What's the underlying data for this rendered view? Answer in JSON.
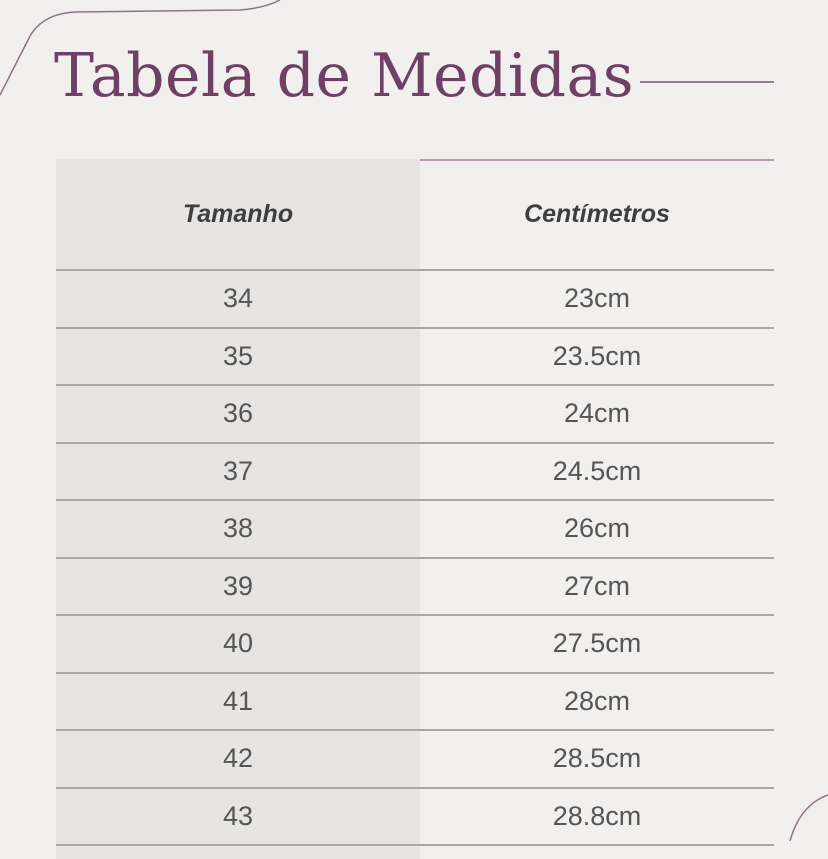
{
  "title": "Tabela de Medidas",
  "table": {
    "headers": [
      "Tamanho",
      "Centímetros"
    ],
    "rows": [
      [
        "34",
        "23cm"
      ],
      [
        "35",
        "23.5cm"
      ],
      [
        "36",
        "24cm"
      ],
      [
        "37",
        "24.5cm"
      ],
      [
        "38",
        "26cm"
      ],
      [
        "39",
        "27cm"
      ],
      [
        "40",
        "27.5cm"
      ],
      [
        "41",
        "28cm"
      ],
      [
        "42",
        "28.5cm"
      ],
      [
        "43",
        "28.8cm"
      ]
    ]
  },
  "colors": {
    "title": "#6f3f66",
    "accent_line": "#b89ab1",
    "left_column": "#e7e5e3",
    "background": "#f1f0ef"
  }
}
